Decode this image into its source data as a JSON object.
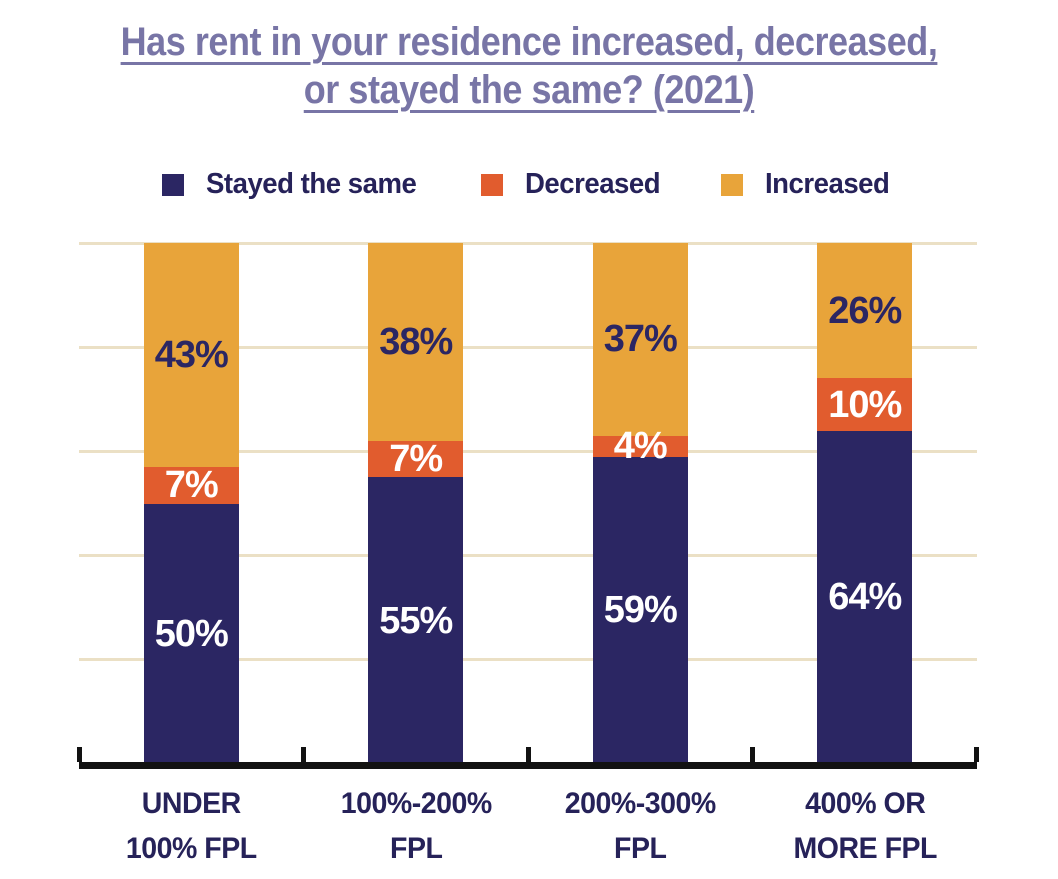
{
  "title": {
    "line1": "Has rent in your residence increased, decreased,",
    "line2": "or stayed the same? (2021)",
    "color": "#7875A6"
  },
  "chart_data": {
    "type": "bar",
    "stacked": true,
    "title": "Has rent in your residence increased, decreased, or stayed the same? (2021)",
    "xlabel": "",
    "ylabel": "",
    "ylim": [
      0,
      100
    ],
    "grid": true,
    "gridline_values": [
      20,
      40,
      60,
      80,
      100
    ],
    "legend_position": "top",
    "value_suffix": "%",
    "categories": [
      {
        "line1": "UNDER",
        "line2": "100% FPL"
      },
      {
        "line1": "100%-200%",
        "line2": "FPL"
      },
      {
        "line1": "200%-300%",
        "line2": "FPL"
      },
      {
        "line1": "400% OR",
        "line2": "MORE FPL"
      }
    ],
    "series": [
      {
        "name": "Stayed the same",
        "color": "#2B2663",
        "label_color": "#FFFFFF",
        "values": [
          50,
          55,
          59,
          64
        ]
      },
      {
        "name": "Decreased",
        "color": "#E15C2E",
        "label_color": "#FFFFFF",
        "values": [
          7,
          7,
          4,
          10
        ]
      },
      {
        "name": "Increased",
        "color": "#E8A43A",
        "label_color": "#2B2663",
        "values": [
          43,
          38,
          37,
          26
        ]
      }
    ]
  },
  "colors": {
    "background": "#FFFFFF",
    "title_text": "#7875A6",
    "legend_text": "#262259",
    "axis_label_text": "#262259",
    "gridline": "#EBE0C5",
    "axis_line": "#121212"
  }
}
